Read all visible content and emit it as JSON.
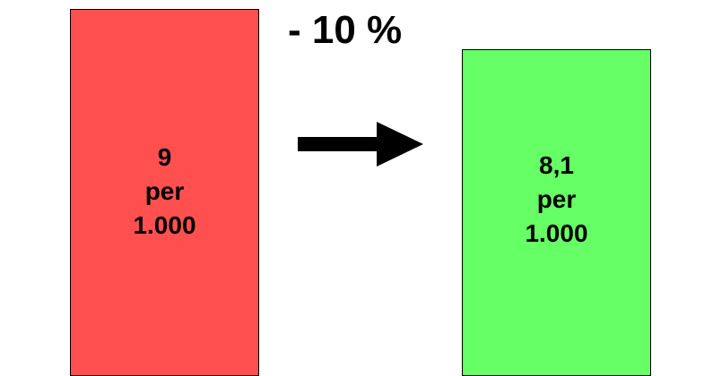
{
  "before": {
    "value": "9",
    "unit": "per",
    "denominator": "1.000",
    "color": "#ff5050"
  },
  "after": {
    "value": "8,1",
    "unit": "per",
    "denominator": "1.000",
    "color": "#66ff66"
  },
  "change": {
    "label": "- 10 %"
  },
  "arrow": {
    "icon": "arrow-right-icon",
    "color": "#000000"
  }
}
